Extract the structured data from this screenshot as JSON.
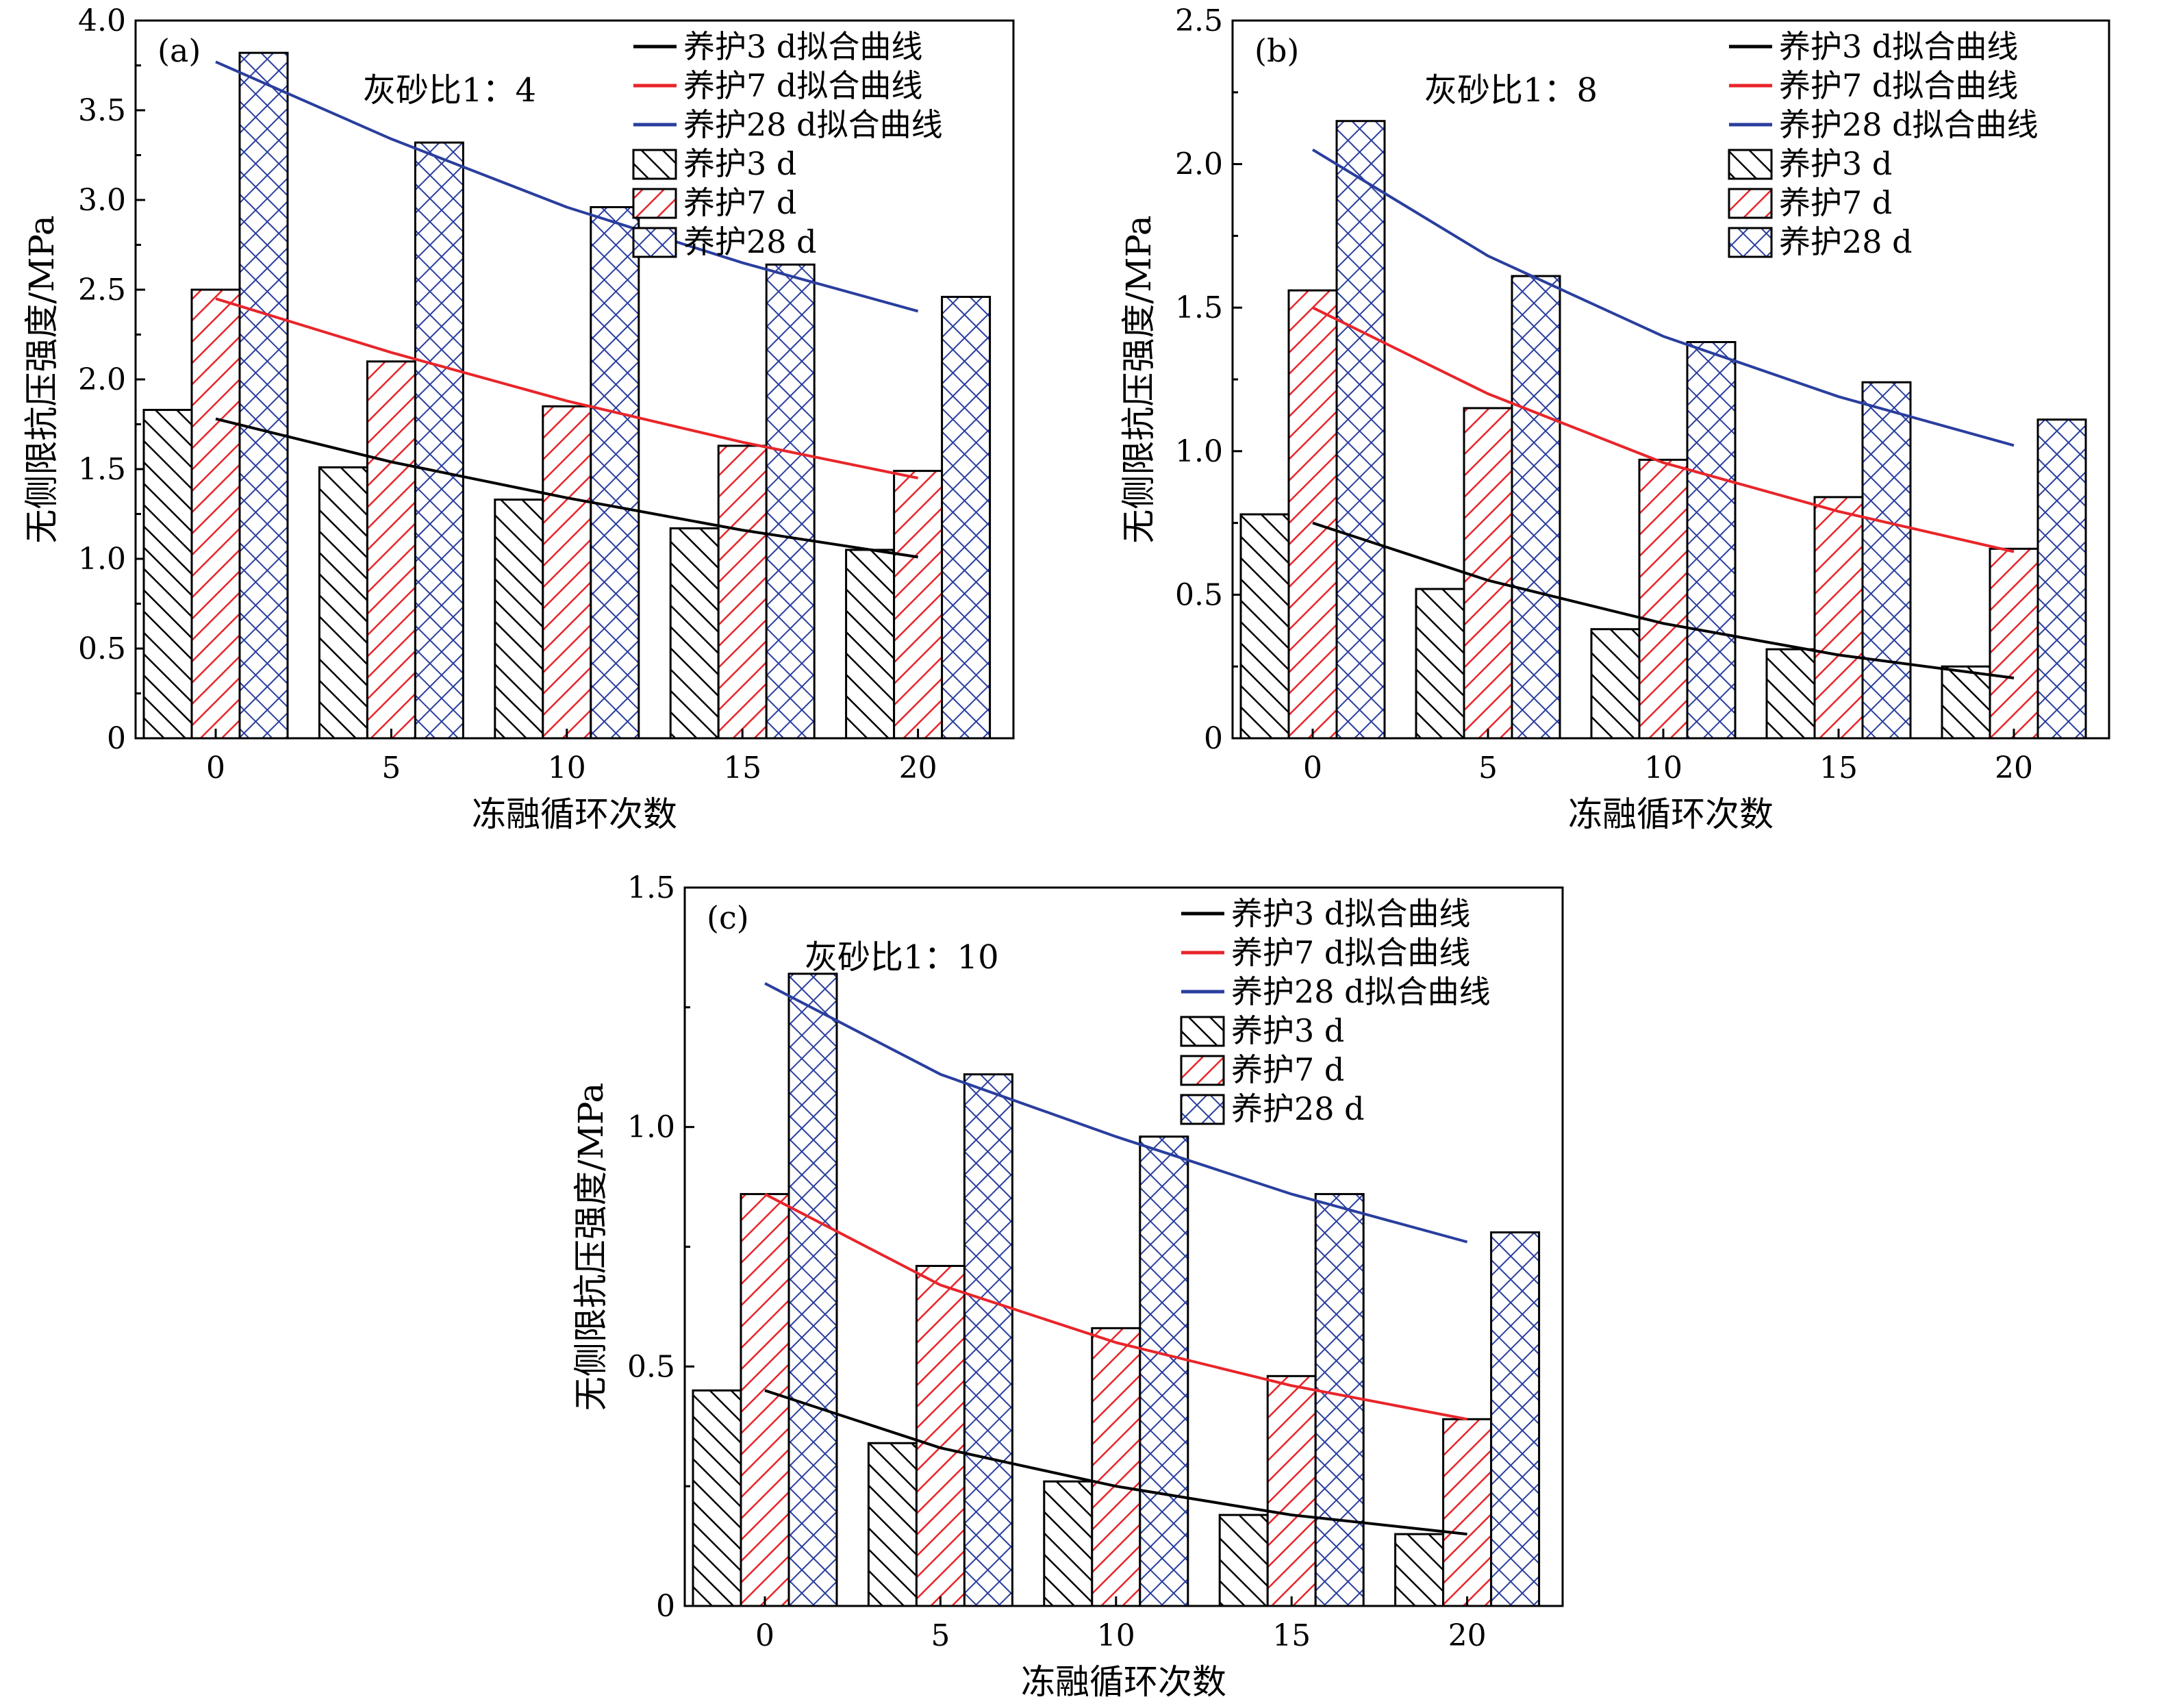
{
  "chart_data": [
    {
      "type": "bar",
      "panel_label": "(a)",
      "annotation": "灰砂比1：4",
      "xlabel": "冻融循环次数",
      "ylabel": "无侧限抗压强度/MPa",
      "categories": [
        "0",
        "5",
        "10",
        "15",
        "20"
      ],
      "ylim": [
        0,
        4.0
      ],
      "yticks": [
        "0",
        "0.5",
        "1.0",
        "1.5",
        "2.0",
        "2.5",
        "3.0",
        "3.5",
        "4.0"
      ],
      "series": [
        {
          "name": "养护3 d",
          "pattern": "diag",
          "color": "#000000",
          "values": [
            1.83,
            1.51,
            1.33,
            1.17,
            1.05
          ]
        },
        {
          "name": "养护7 d",
          "pattern": "diag",
          "color": "#e8252a",
          "values": [
            2.5,
            2.1,
            1.85,
            1.63,
            1.49
          ]
        },
        {
          "name": "养护28 d",
          "pattern": "cross",
          "color": "#2a3e9e",
          "values": [
            3.82,
            3.32,
            2.96,
            2.64,
            2.46
          ]
        }
      ],
      "fits": [
        {
          "name": "养护3 d拟合曲线",
          "color": "#000000",
          "values": [
            1.78,
            1.54,
            1.34,
            1.16,
            1.01
          ]
        },
        {
          "name": "养护7 d拟合曲线",
          "color": "#e8252a",
          "values": [
            2.45,
            2.15,
            1.88,
            1.65,
            1.45
          ]
        },
        {
          "name": "养护28 d拟合曲线",
          "color": "#2a3e9e",
          "values": [
            3.77,
            3.34,
            2.96,
            2.65,
            2.38
          ]
        }
      ]
    },
    {
      "type": "bar",
      "panel_label": "(b)",
      "annotation": "灰砂比1：8",
      "xlabel": "冻融循环次数",
      "ylabel": "无侧限抗压强度/MPa",
      "categories": [
        "0",
        "5",
        "10",
        "15",
        "20"
      ],
      "ylim": [
        0,
        2.5
      ],
      "yticks": [
        "0",
        "0.5",
        "1.0",
        "1.5",
        "2.0",
        "2.5"
      ],
      "series": [
        {
          "name": "养护3 d",
          "pattern": "diag",
          "color": "#000000",
          "values": [
            0.78,
            0.52,
            0.38,
            0.31,
            0.25
          ]
        },
        {
          "name": "养护7 d",
          "pattern": "diag",
          "color": "#e8252a",
          "values": [
            1.56,
            1.15,
            0.97,
            0.84,
            0.66
          ]
        },
        {
          "name": "养护28 d",
          "pattern": "cross",
          "color": "#2a3e9e",
          "values": [
            2.15,
            1.61,
            1.38,
            1.24,
            1.11
          ]
        }
      ],
      "fits": [
        {
          "name": "养护3 d拟合曲线",
          "color": "#000000",
          "values": [
            0.75,
            0.55,
            0.4,
            0.29,
            0.21
          ]
        },
        {
          "name": "养护7 d拟合曲线",
          "color": "#e8252a",
          "values": [
            1.5,
            1.2,
            0.96,
            0.79,
            0.65
          ]
        },
        {
          "name": "养护28 d拟合曲线",
          "color": "#2a3e9e",
          "values": [
            2.05,
            1.68,
            1.4,
            1.19,
            1.02
          ]
        }
      ]
    },
    {
      "type": "bar",
      "panel_label": "(c)",
      "annotation": "灰砂比1：10",
      "xlabel": "冻融循环次数",
      "ylabel": "无侧限抗压强度/MPa",
      "categories": [
        "0",
        "5",
        "10",
        "15",
        "20"
      ],
      "ylim": [
        0,
        1.5
      ],
      "yticks": [
        "0",
        "0.5",
        "1.0",
        "1.5"
      ],
      "series": [
        {
          "name": "养护3 d",
          "pattern": "diag",
          "color": "#000000",
          "values": [
            0.45,
            0.34,
            0.26,
            0.19,
            0.15
          ]
        },
        {
          "name": "养护7 d",
          "pattern": "diag",
          "color": "#e8252a",
          "values": [
            0.86,
            0.71,
            0.58,
            0.48,
            0.39
          ]
        },
        {
          "name": "养护28 d",
          "pattern": "cross",
          "color": "#2a3e9e",
          "values": [
            1.32,
            1.11,
            0.98,
            0.86,
            0.78
          ]
        }
      ],
      "fits": [
        {
          "name": "养护3 d拟合曲线",
          "color": "#000000",
          "values": [
            0.45,
            0.33,
            0.25,
            0.19,
            0.15
          ]
        },
        {
          "name": "养护7 d拟合曲线",
          "color": "#e8252a",
          "values": [
            0.86,
            0.67,
            0.55,
            0.46,
            0.39
          ]
        },
        {
          "name": "养护28 d拟合曲线",
          "color": "#2a3e9e",
          "values": [
            1.3,
            1.11,
            0.98,
            0.86,
            0.76
          ]
        }
      ]
    }
  ]
}
